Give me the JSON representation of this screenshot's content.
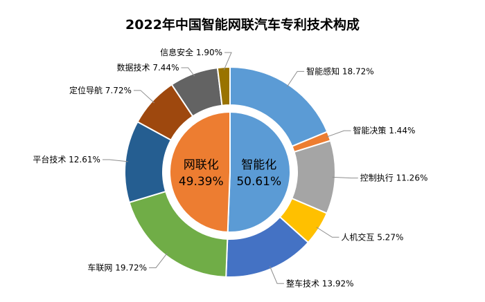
{
  "chart_data": {
    "type": "pie",
    "title": "2022年中国智能网联汽车专利技术构成",
    "outer": [
      {
        "label": "智能感知",
        "value": 18.72,
        "display": "智能感知 18.72%",
        "color": "#5b9bd5"
      },
      {
        "label": "智能决策",
        "value": 1.44,
        "display": "智能决策 1.44%",
        "color": "#ed7d31"
      },
      {
        "label": "控制执行",
        "value": 11.26,
        "display": "控制执行 11.26%",
        "color": "#a5a5a5"
      },
      {
        "label": "人机交互",
        "value": 5.27,
        "display": "人机交互 5.27%",
        "color": "#ffc000"
      },
      {
        "label": "整车技术",
        "value": 13.92,
        "display": "整车技术 13.92%",
        "color": "#4472c4"
      },
      {
        "label": "车联网",
        "value": 19.72,
        "display": "车联网 19.72%",
        "color": "#70ad47"
      },
      {
        "label": "平台技术",
        "value": 12.61,
        "display": "平台技术 12.61%",
        "color": "#255e91"
      },
      {
        "label": "定位导航",
        "value": 7.72,
        "display": "定位导航 7.72%",
        "color": "#9e480e"
      },
      {
        "label": "数据技术",
        "value": 7.44,
        "display": "数据技术 7.44%",
        "color": "#636363"
      },
      {
        "label": "信息安全",
        "value": 1.9,
        "display": "信息安全 1.90%",
        "color": "#997300"
      }
    ],
    "inner": [
      {
        "label": "智能化",
        "value": 50.61,
        "display": "50.61%",
        "color": "#5b9bd5"
      },
      {
        "label": "网联化",
        "value": 49.39,
        "display": "49.39%",
        "color": "#ed7d31"
      }
    ]
  }
}
